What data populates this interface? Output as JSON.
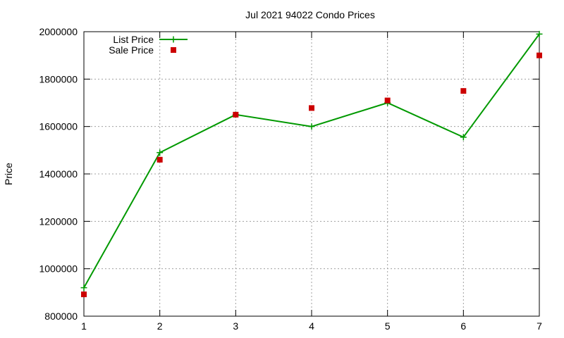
{
  "chart_data": {
    "type": "line",
    "title": "Jul 2021 94022 Condo Prices",
    "xlabel": "",
    "ylabel": "Price",
    "x": [
      1,
      2,
      3,
      4,
      5,
      6,
      7
    ],
    "xlim": [
      1,
      7
    ],
    "ylim": [
      800000,
      2000000
    ],
    "x_ticks": [
      "1",
      "2",
      "3",
      "4",
      "5",
      "6",
      "7"
    ],
    "y_ticks": [
      "800000",
      "1000000",
      "1200000",
      "1400000",
      "1600000",
      "1800000",
      "2000000"
    ],
    "grid": true,
    "legend_position": "top-left",
    "series": [
      {
        "name": "List Price",
        "style": "lines+points",
        "marker": "plus",
        "color": "#009900",
        "values": [
          920000,
          1490000,
          1650000,
          1600000,
          1700000,
          1555000,
          1990000
        ]
      },
      {
        "name": "Sale Price",
        "style": "points",
        "marker": "square",
        "color": "#cc0000",
        "values": [
          892000,
          1460000,
          1650000,
          1678000,
          1710000,
          1750000,
          1900000
        ]
      }
    ]
  }
}
